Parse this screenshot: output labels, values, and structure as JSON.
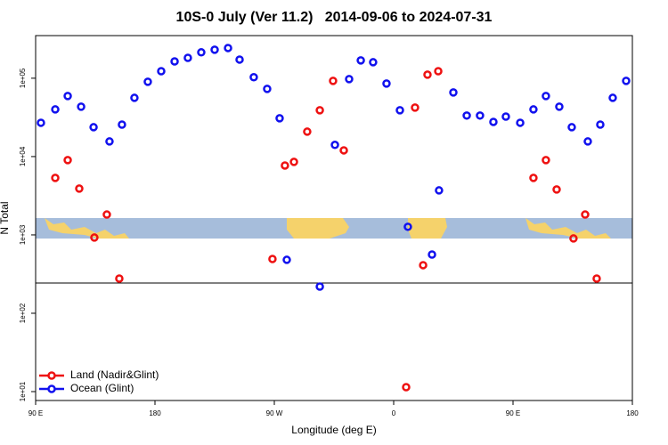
{
  "chart_data": {
    "type": "scatter",
    "title": "10S-0 July (Ver 11.2)   2014-09-06 to 2024-07-31",
    "x_label": "Longitude (deg E)",
    "y_label": "N Total",
    "y_log": true,
    "xlim": [
      90,
      540
    ],
    "ylim": [
      7.7,
      350000
    ],
    "xticks": [
      {
        "value": 90,
        "label": "90 E"
      },
      180,
      {
        "value": 270,
        "label": "90 W"
      },
      {
        "value": 360,
        "label": "0"
      },
      {
        "value": 450,
        "label": "90 E"
      },
      {
        "value": 540,
        "label": "180"
      }
    ],
    "yticks": [
      {
        "value": 10,
        "label": "1e+01"
      },
      {
        "value": 100,
        "label": "1e+02"
      },
      {
        "value": 1000,
        "label": "1e+03"
      },
      {
        "value": 10000,
        "label": "1e+04"
      },
      {
        "value": 100000,
        "label": "1e+05"
      }
    ],
    "hline": 243,
    "legend": "bottom-left",
    "series": [
      {
        "name": "Land (Nadir&Glint)",
        "color": "#ee1111",
        "x": [
          104.8,
          114.2,
          122.9,
          134.3,
          143.7,
          153.1,
          268.6,
          278.0,
          284.8,
          294.8,
          304.3,
          314.3,
          322.4,
          369.4,
          376.1,
          382.2,
          385.5,
          393.6,
          465.4,
          474.8,
          482.9,
          495.6,
          504.4,
          513.1
        ],
        "values": [
          5340,
          9010,
          3900,
          925,
          1820,
          277,
          493,
          7690,
          8550,
          20800,
          39000,
          92500,
          12000,
          11.4,
          42200,
          411,
          111000,
          123000,
          5340,
          9010,
          3800,
          901,
          1820,
          277
        ]
      },
      {
        "name": "Ocean (Glint)",
        "color": "#1111ee",
        "x": [
          94.0,
          104.8,
          114.2,
          124.3,
          133.7,
          145.7,
          155.1,
          164.5,
          174.6,
          184.7,
          194.8,
          204.8,
          214.9,
          225.0,
          235.1,
          243.8,
          254.5,
          264.6,
          274.0,
          279.4,
          304.3,
          315.7,
          326.4,
          335.2,
          344.5,
          354.6,
          364.7,
          370.7,
          388.9,
          394.2,
          405.0,
          415.1,
          425.1,
          435.2,
          444.6,
          455.4,
          465.4,
          474.8,
          484.9,
          494.3,
          506.4,
          515.8,
          525.2,
          535.3
        ],
        "values": [
          27000,
          40000,
          59300,
          43300,
          23700,
          15600,
          25600,
          56200,
          90100,
          123000,
          164000,
          182000,
          214000,
          231000,
          243000,
          173000,
          103000,
          73100,
          30800,
          481,
          219,
          14100,
          97500,
          169000,
          160000,
          85500,
          39000,
          1270,
          562,
          3700,
          65800,
          33400,
          33400,
          27700,
          32400,
          27000,
          40000,
          59300,
          43300,
          23700,
          15600,
          25600,
          56200,
          92500
        ]
      }
    ]
  }
}
